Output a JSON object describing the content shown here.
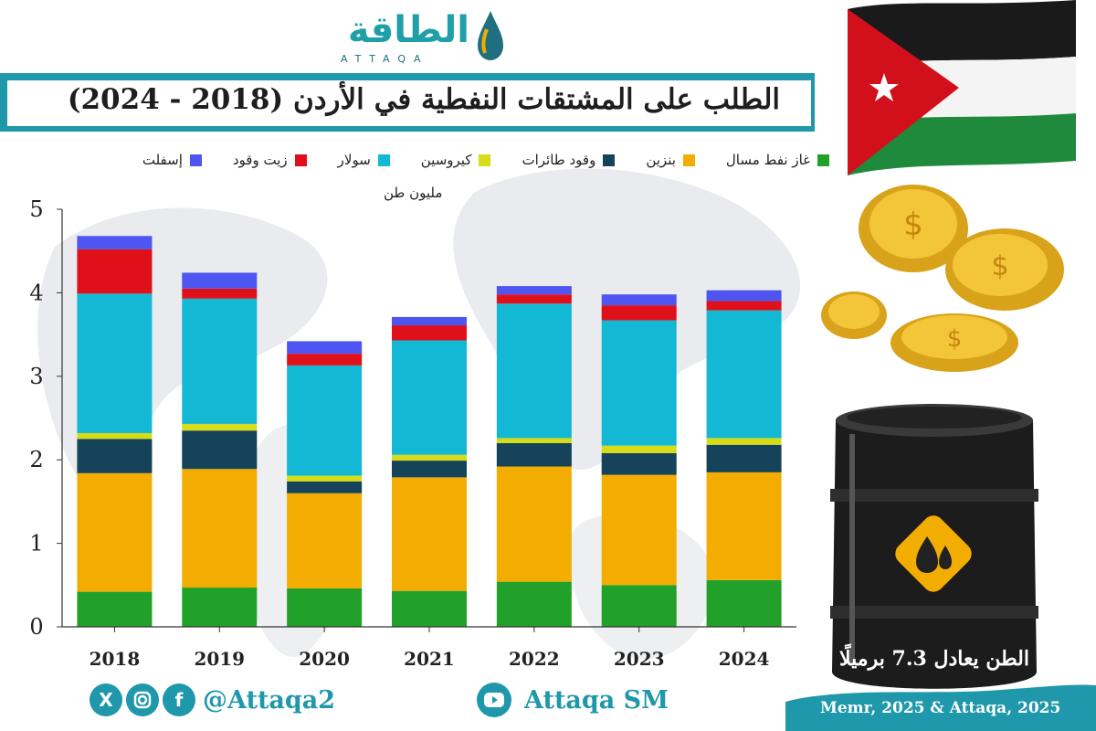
{
  "brand": {
    "logo_text": "الطاقة",
    "logo_sub": "ATTAQA",
    "accent": "#1e98aa"
  },
  "title": "الطلب على المشتقات النفطية في الأردن (2018 - 2024)",
  "unit": "مليون طن",
  "barrel_caption": "الطن يعادل 7.3 برميلًا",
  "source": "Memr, 2025 & Attaqa, 2025",
  "social": {
    "icons": [
      "x-icon",
      "instagram-icon",
      "facebook-icon"
    ],
    "handle": "@Attaqa2",
    "youtube_icon": "youtube-icon",
    "youtube_handle": "Attaqa SM"
  },
  "chart_data": {
    "type": "bar",
    "stacked": true,
    "categories": [
      "2018",
      "2019",
      "2020",
      "2021",
      "2022",
      "2023",
      "2024"
    ],
    "ylim": [
      0,
      5
    ],
    "yticks": [
      0,
      1,
      2,
      3,
      4,
      5
    ],
    "grid": false,
    "legend_position": "top",
    "series": [
      {
        "name": "غاز نفط مسال",
        "color": "#22a12a",
        "values": [
          0.42,
          0.47,
          0.46,
          0.43,
          0.54,
          0.5,
          0.56
        ]
      },
      {
        "name": "بنزين",
        "color": "#f2ad00",
        "values": [
          1.42,
          1.42,
          1.14,
          1.36,
          1.38,
          1.32,
          1.29
        ]
      },
      {
        "name": "وقود طائرات",
        "color": "#15435a",
        "values": [
          0.41,
          0.46,
          0.14,
          0.2,
          0.28,
          0.26,
          0.33
        ]
      },
      {
        "name": "كيروسين",
        "color": "#d6dc18",
        "values": [
          0.07,
          0.08,
          0.07,
          0.07,
          0.06,
          0.09,
          0.08
        ]
      },
      {
        "name": "سولار",
        "color": "#12b8d4",
        "values": [
          1.67,
          1.5,
          1.32,
          1.37,
          1.61,
          1.5,
          1.53
        ]
      },
      {
        "name": "زيت وقود",
        "color": "#e0101b",
        "values": [
          0.53,
          0.12,
          0.14,
          0.18,
          0.11,
          0.18,
          0.11
        ]
      },
      {
        "name": "إسفلت",
        "color": "#4f55f0",
        "values": [
          0.16,
          0.19,
          0.15,
          0.1,
          0.1,
          0.13,
          0.13
        ]
      }
    ]
  }
}
